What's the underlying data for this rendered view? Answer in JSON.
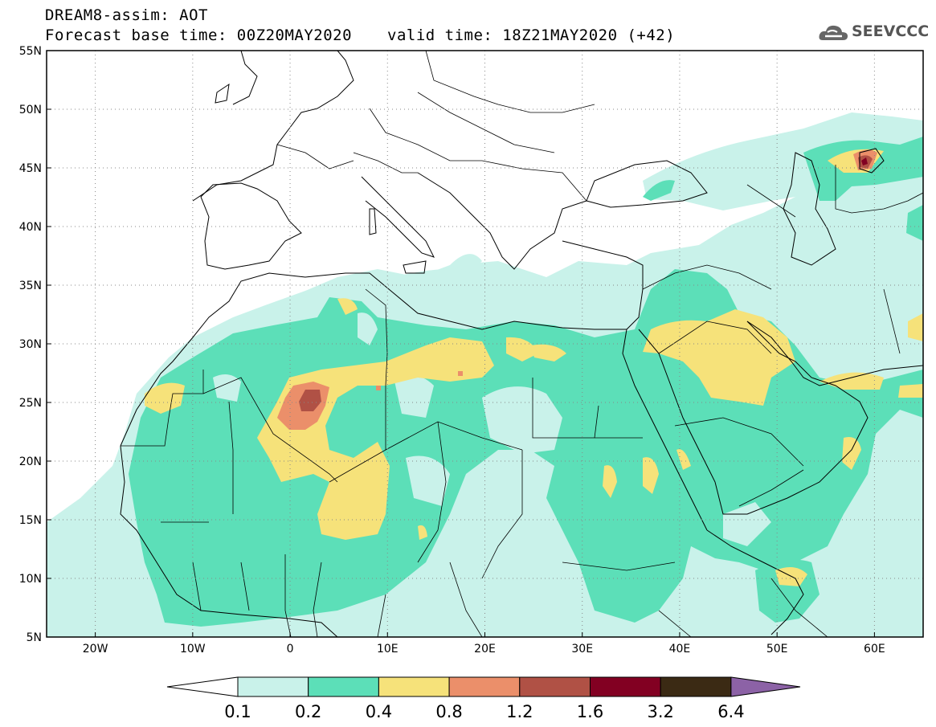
{
  "header": {
    "line1": "DREAM8-assim: AOT",
    "line2a": "Forecast base time: 00Z20MAY2020",
    "line2b": "valid time: 18Z21MAY2020 (+42)",
    "logo": "SEEVCCC"
  },
  "map": {
    "lon_range": [
      -25,
      65
    ],
    "lat_range": [
      5,
      55
    ],
    "lat_labels": [
      "5N",
      "10N",
      "15N",
      "20N",
      "25N",
      "30N",
      "35N",
      "40N",
      "45N",
      "50N",
      "55N"
    ],
    "lon_labels": [
      "20W",
      "10W",
      "0",
      "10E",
      "20E",
      "30E",
      "40E",
      "50E",
      "60E"
    ],
    "grid": "dotted"
  },
  "colorbar": {
    "labels": [
      "0.1",
      "0.2",
      "0.4",
      "0.8",
      "1.2",
      "1.6",
      "3.2",
      "6.4"
    ],
    "colors": [
      "#ffffff",
      "#c9f2ea",
      "#5cdfb8",
      "#f6e27a",
      "#eb8f6a",
      "#b05145",
      "#820022",
      "#3b2a14",
      "#8c62a6"
    ]
  }
}
